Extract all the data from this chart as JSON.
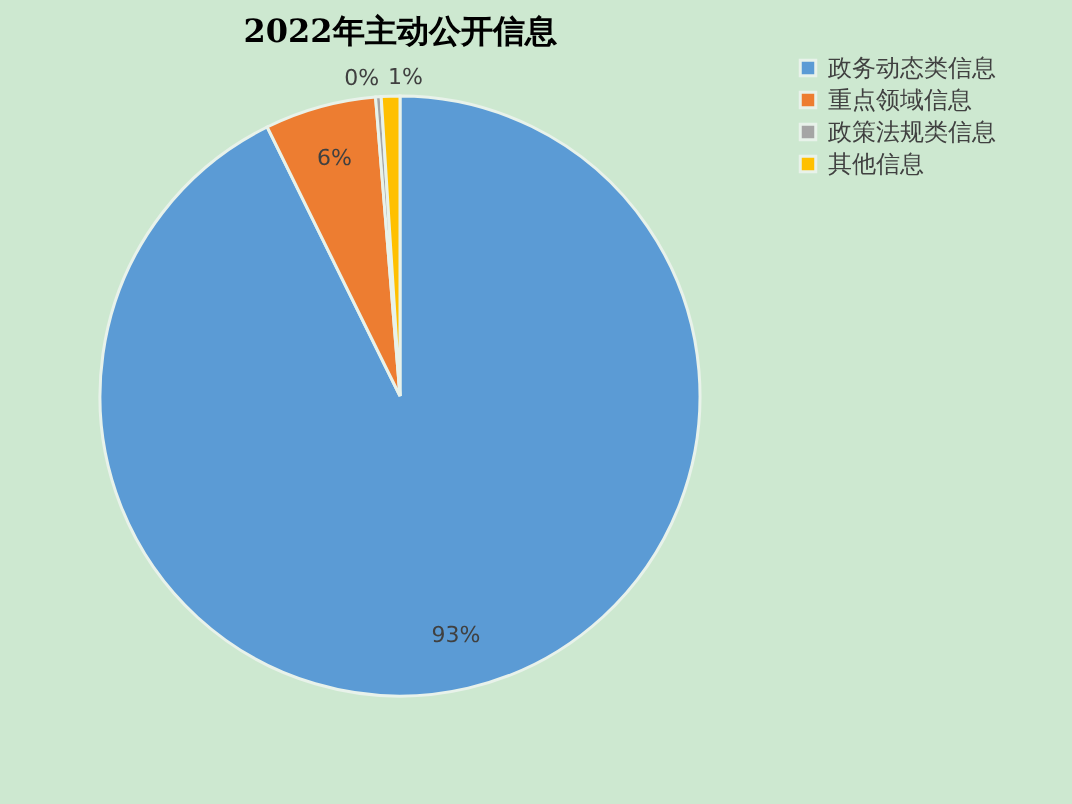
{
  "chart_data": {
    "type": "pie",
    "title": "2022年主动公开信息",
    "categories": [
      "政务动态类信息",
      "重点领域信息",
      "政策法规类信息",
      "其他信息"
    ],
    "values": [
      92.7,
      6,
      0.3,
      1
    ],
    "value_labels": [
      "93%",
      "6%",
      "0%",
      "1%"
    ],
    "colors": [
      "#5b9bd5",
      "#ed7d31",
      "#a5a5a5",
      "#ffc000"
    ],
    "legend": "right"
  }
}
